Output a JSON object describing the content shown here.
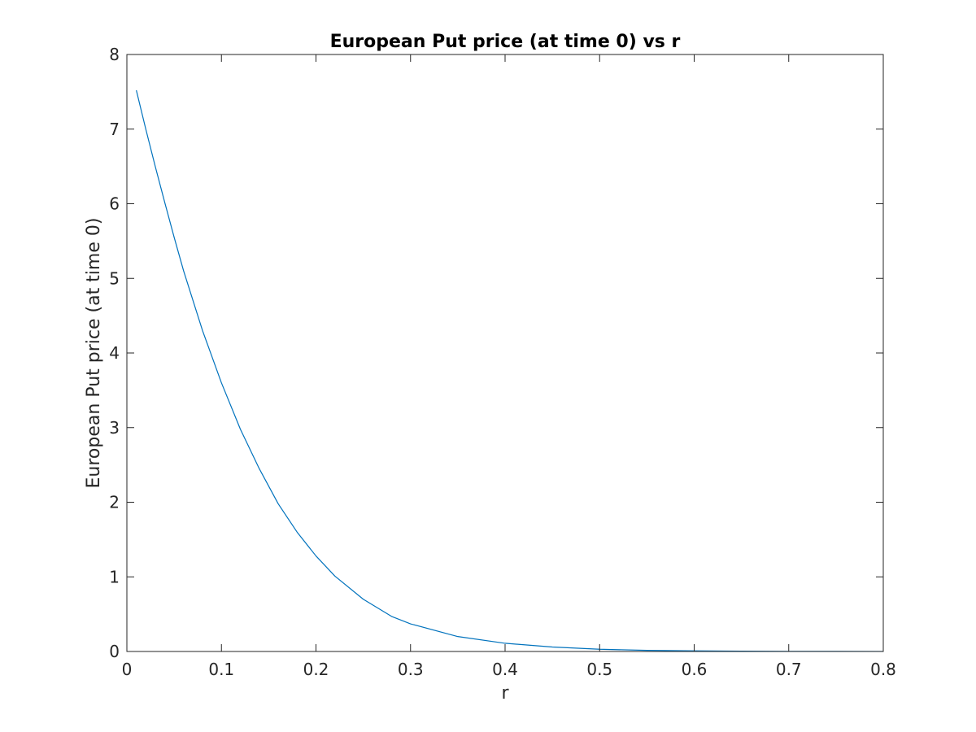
{
  "chart_data": {
    "type": "line",
    "title": "European Put price (at time 0) vs r",
    "xlabel": "r",
    "ylabel": "European Put price (at time 0)",
    "xlim": [
      0,
      0.8
    ],
    "ylim": [
      0,
      8
    ],
    "xticks": [
      "0",
      "0.1",
      "0.2",
      "0.3",
      "0.4",
      "0.5",
      "0.6",
      "0.7",
      "0.8"
    ],
    "yticks": [
      "0",
      "1",
      "2",
      "3",
      "4",
      "5",
      "6",
      "7",
      "8"
    ],
    "grid": false,
    "box": true,
    "series": [
      {
        "color": "#0072bd",
        "x": [
          0.01,
          0.02,
          0.03,
          0.04,
          0.05,
          0.06,
          0.08,
          0.1,
          0.12,
          0.14,
          0.16,
          0.18,
          0.2,
          0.22,
          0.25,
          0.28,
          0.3,
          0.35,
          0.4,
          0.45,
          0.5,
          0.55,
          0.6,
          0.65,
          0.7,
          0.75,
          0.8
        ],
        "y": [
          7.52,
          7.0,
          6.5,
          6.02,
          5.55,
          5.1,
          4.3,
          3.6,
          2.98,
          2.45,
          1.98,
          1.6,
          1.28,
          1.01,
          0.7,
          0.47,
          0.37,
          0.2,
          0.11,
          0.06,
          0.03,
          0.015,
          0.008,
          0.004,
          0.002,
          0.001,
          0.0005
        ]
      }
    ]
  }
}
